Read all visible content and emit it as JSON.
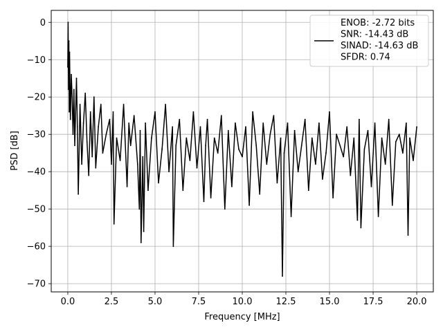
{
  "chart_data": {
    "type": "line",
    "title": "",
    "xlabel": "Frequency [MHz]",
    "ylabel": "PSD [dB]",
    "xlim": [
      -0.95,
      20.95
    ],
    "ylim": [
      -72.2,
      3.2
    ],
    "x_ticks": [
      {
        "value": 0.0,
        "label": "0.0"
      },
      {
        "value": 2.5,
        "label": "2.5"
      },
      {
        "value": 5.0,
        "label": "5.0"
      },
      {
        "value": 7.5,
        "label": "7.5"
      },
      {
        "value": 10.0,
        "label": "10.0"
      },
      {
        "value": 12.5,
        "label": "12.5"
      },
      {
        "value": 15.0,
        "label": "15.0"
      },
      {
        "value": 17.5,
        "label": "17.5"
      },
      {
        "value": 20.0,
        "label": "20.0"
      }
    ],
    "y_ticks": [
      {
        "value": 0,
        "label": "0"
      },
      {
        "value": -10,
        "label": "−10"
      },
      {
        "value": -20,
        "label": "−20"
      },
      {
        "value": -30,
        "label": "−30"
      },
      {
        "value": -40,
        "label": "−40"
      },
      {
        "value": -50,
        "label": "−50"
      },
      {
        "value": -60,
        "label": "−60"
      },
      {
        "value": -70,
        "label": "−70"
      }
    ],
    "grid": true,
    "legend": {
      "placement": "top-right",
      "entries": [
        "ENOB: -2.72 bits",
        "SNR: -14.43 dB",
        "SINAD: -14.63 dB",
        "SFDR: 0.74"
      ]
    },
    "series": [
      {
        "color": "#000000",
        "x": [
          0.0,
          0.02,
          0.04,
          0.06,
          0.08,
          0.1,
          0.15,
          0.2,
          0.25,
          0.3,
          0.35,
          0.4,
          0.5,
          0.55,
          0.6,
          0.7,
          0.8,
          0.9,
          1.0,
          1.1,
          1.2,
          1.3,
          1.4,
          1.5,
          1.6,
          1.75,
          1.9,
          2.0,
          2.2,
          2.4,
          2.5,
          2.6,
          2.65,
          2.8,
          3.0,
          3.2,
          3.4,
          3.5,
          3.6,
          3.8,
          4.0,
          4.1,
          4.15,
          4.2,
          4.3,
          4.35,
          4.45,
          4.6,
          4.8,
          5.0,
          5.2,
          5.4,
          5.6,
          5.8,
          6.0,
          6.05,
          6.2,
          6.4,
          6.6,
          6.8,
          7.0,
          7.2,
          7.4,
          7.6,
          7.8,
          7.9,
          8.0,
          8.2,
          8.4,
          8.6,
          8.8,
          9.0,
          9.2,
          9.4,
          9.6,
          9.8,
          10.0,
          10.2,
          10.4,
          10.6,
          10.8,
          11.0,
          11.2,
          11.4,
          11.6,
          11.8,
          12.0,
          12.2,
          12.3,
          12.4,
          12.6,
          12.8,
          13.0,
          13.2,
          13.4,
          13.6,
          13.8,
          14.0,
          14.2,
          14.4,
          14.6,
          14.8,
          15.0,
          15.2,
          15.4,
          15.6,
          15.8,
          16.0,
          16.2,
          16.4,
          16.6,
          16.7,
          16.8,
          17.0,
          17.2,
          17.4,
          17.6,
          17.8,
          18.0,
          18.2,
          18.4,
          18.6,
          18.8,
          19.0,
          19.2,
          19.4,
          19.5,
          19.6,
          19.8,
          20.0
        ],
        "y": [
          -12,
          0,
          -18,
          -5,
          -24,
          -8,
          -26,
          -14,
          -20,
          -30,
          -18,
          -33,
          -15,
          -28,
          -46,
          -22,
          -38,
          -27,
          -19,
          -32,
          -41,
          -24,
          -36,
          -20,
          -39,
          -28,
          -22,
          -35,
          -30,
          -26,
          -38,
          -24,
          -54,
          -31,
          -37,
          -22,
          -44,
          -27,
          -33,
          -25,
          -38,
          -50,
          -29,
          -59,
          -36,
          -56,
          -27,
          -45,
          -31,
          -24,
          -43,
          -34,
          -22,
          -40,
          -28,
          -60,
          -33,
          -26,
          -45,
          -31,
          -37,
          -24,
          -39,
          -28,
          -48,
          -33,
          -26,
          -47,
          -31,
          -35,
          -25,
          -50,
          -29,
          -44,
          -27,
          -34,
          -36,
          -28,
          -49,
          -24,
          -33,
          -46,
          -27,
          -38,
          -30,
          -25,
          -43,
          -31,
          -68,
          -35,
          -27,
          -52,
          -29,
          -40,
          -33,
          -26,
          -45,
          -31,
          -38,
          -27,
          -42,
          -35,
          -24,
          -47,
          -30,
          -33,
          -36,
          -28,
          -41,
          -31,
          -53,
          -26,
          -55,
          -34,
          -29,
          -44,
          -27,
          -52,
          -31,
          -38,
          -26,
          -49,
          -32,
          -30,
          -35,
          -27,
          -57,
          -31,
          -37,
          -28
        ]
      }
    ]
  }
}
